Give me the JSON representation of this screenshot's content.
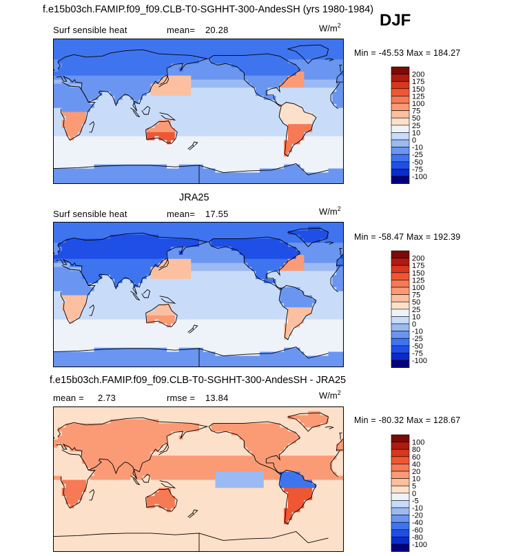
{
  "header": {
    "title": "f.e15b03ch.FAMIP.f09_f09.CLB-T0-SGHHT-300-AndesSH (yrs 1980-1984)",
    "season": "DJF"
  },
  "colors": {
    "seq": [
      "#00007f",
      "#0a2ccc",
      "#1f4fe6",
      "#3f74ef",
      "#6a96f1",
      "#9bbaf4",
      "#c8dcfa",
      "#eef2f9",
      "#fde0c9",
      "#fcc0a0",
      "#fa9b76",
      "#f57a55",
      "#ef5733",
      "#d8361d",
      "#b01a0f",
      "#7c0a06"
    ],
    "coast": "#000000"
  },
  "chart_data": [
    {
      "type": "heatmap",
      "panel_title": "",
      "variable": "Surf sensible heat",
      "stats_label": "mean=",
      "stats_value": "20.28",
      "units": "W/m",
      "units_sup": "2",
      "min_label": "Min =",
      "min_value": "-45.53",
      "max_label": "Max =",
      "max_value": "184.27",
      "levels": [
        "200",
        "175",
        "150",
        "125",
        "100",
        "75",
        "50",
        "25",
        "10",
        "0",
        "-10",
        "-25",
        "-50",
        "-75",
        "-100"
      ]
    },
    {
      "type": "heatmap",
      "panel_title": "JRA25",
      "variable": "Surf sensible heat",
      "stats_label": "mean=",
      "stats_value": "17.55",
      "units": "W/m",
      "units_sup": "2",
      "min_label": "Min =",
      "min_value": "-58.47",
      "max_label": "Max =",
      "max_value": "192.39",
      "levels": [
        "200",
        "175",
        "150",
        "125",
        "100",
        "75",
        "50",
        "25",
        "10",
        "0",
        "-10",
        "-25",
        "-50",
        "-75",
        "-100"
      ]
    },
    {
      "type": "heatmap",
      "panel_title": "f.e15b03ch.FAMIP.f09_f09.CLB-T0-SGHHT-300-AndesSH - JRA25",
      "stats_label": "mean =",
      "stats_value": "2.73",
      "stats2_label": "rmse =",
      "stats2_value": "13.84",
      "units": "W/m",
      "units_sup": "2",
      "min_label": "Min =",
      "min_value": "-80.32",
      "max_label": "Max =",
      "max_value": "128.67",
      "levels": [
        "100",
        "80",
        "60",
        "40",
        "20",
        "10",
        "5",
        "0",
        "-5",
        "-10",
        "-20",
        "-40",
        "-60",
        "-80",
        "-100"
      ]
    }
  ]
}
